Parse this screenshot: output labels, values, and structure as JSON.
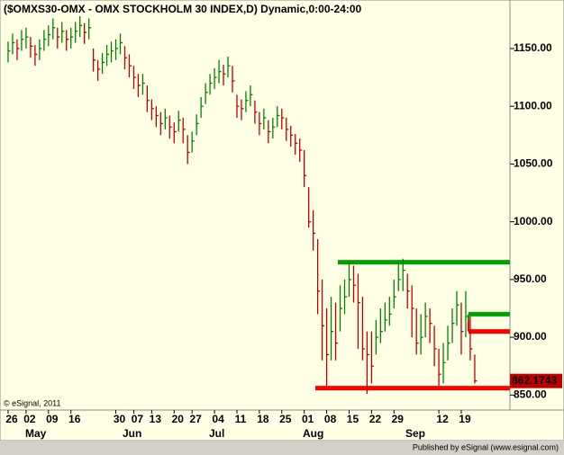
{
  "chart_data": {
    "type": "hlc",
    "title": "($OMXS30-OMX - OMX STOCKHOLM 30 INDEX,D) Dynamic,0:00-24:00",
    "copyright": "© eSignal, 2011",
    "footer": "Published by eSignal (www.esignal.com)",
    "up_color": "#008000",
    "down_color": "#c00000",
    "categories": [
      "26",
      null,
      null,
      null,
      "02",
      null,
      null,
      null,
      null,
      "09",
      null,
      null,
      null,
      null,
      "16",
      null,
      null,
      null,
      null,
      null,
      null,
      null,
      null,
      null,
      "30",
      null,
      null,
      null,
      "07",
      null,
      null,
      null,
      "13",
      null,
      null,
      null,
      null,
      "20",
      null,
      null,
      null,
      "27",
      null,
      null,
      null,
      null,
      "04",
      null,
      null,
      null,
      null,
      "11",
      null,
      null,
      null,
      null,
      "18",
      null,
      null,
      null,
      null,
      "25",
      null,
      null,
      null,
      null,
      "01",
      null,
      null,
      null,
      null,
      "08",
      null,
      null,
      null,
      null,
      "15",
      null,
      null,
      null,
      null,
      "22",
      null,
      null,
      null,
      null,
      "29",
      null,
      null,
      null,
      null,
      null,
      null,
      null,
      null,
      null,
      "12",
      null,
      null,
      null,
      null,
      "19",
      null,
      null,
      null
    ],
    "months": [
      "May",
      "Jun",
      "Jul",
      "Aug",
      "Sep"
    ],
    "high": [
      1156,
      1163,
      1158,
      1166,
      1168,
      1160,
      1153,
      1158,
      1166,
      1170,
      1176,
      1168,
      1173,
      1166,
      1168,
      1173,
      1178,
      1172,
      1176,
      1150,
      1140,
      1146,
      1153,
      1156,
      1158,
      1163,
      1152,
      1145,
      1135,
      1128,
      1128,
      1118,
      1106,
      1100,
      1095,
      1098,
      1092,
      1086,
      1096,
      1090,
      1075,
      1078,
      1093,
      1108,
      1120,
      1128,
      1133,
      1140,
      1136,
      1143,
      1135,
      1110,
      1106,
      1113,
      1118,
      1105,
      1095,
      1098,
      1088,
      1090,
      1100,
      1098,
      1090,
      1083,
      1076,
      1072,
      1062,
      1030,
      1010,
      985,
      950,
      925,
      935,
      930,
      945,
      950,
      965,
      962,
      955,
      935,
      905,
      905,
      915,
      925,
      930,
      935,
      950,
      965,
      968,
      955,
      945,
      925,
      920,
      930,
      925,
      910,
      890,
      895,
      910,
      925,
      940,
      930,
      940,
      918,
      885
    ],
    "low": [
      1138,
      1145,
      1140,
      1148,
      1150,
      1142,
      1135,
      1140,
      1148,
      1152,
      1158,
      1150,
      1155,
      1148,
      1150,
      1155,
      1160,
      1154,
      1158,
      1130,
      1122,
      1128,
      1135,
      1138,
      1140,
      1145,
      1132,
      1125,
      1115,
      1108,
      1110,
      1095,
      1088,
      1082,
      1075,
      1080,
      1072,
      1068,
      1078,
      1068,
      1050,
      1060,
      1075,
      1090,
      1102,
      1110,
      1115,
      1120,
      1118,
      1125,
      1112,
      1090,
      1088,
      1095,
      1100,
      1085,
      1075,
      1080,
      1068,
      1072,
      1082,
      1080,
      1070,
      1065,
      1058,
      1052,
      1030,
      995,
      975,
      920,
      880,
      858,
      880,
      880,
      905,
      920,
      935,
      930,
      890,
      880,
      851,
      860,
      885,
      895,
      905,
      910,
      925,
      940,
      940,
      925,
      900,
      885,
      885,
      900,
      895,
      875,
      858,
      860,
      880,
      895,
      910,
      885,
      900,
      880,
      860
    ],
    "close": [
      1148,
      1155,
      1150,
      1158,
      1160,
      1152,
      1145,
      1150,
      1158,
      1162,
      1168,
      1160,
      1165,
      1158,
      1160,
      1165,
      1170,
      1164,
      1168,
      1140,
      1132,
      1138,
      1145,
      1148,
      1150,
      1155,
      1142,
      1135,
      1125,
      1118,
      1120,
      1105,
      1098,
      1092,
      1085,
      1090,
      1082,
      1078,
      1088,
      1080,
      1060,
      1070,
      1085,
      1100,
      1112,
      1120,
      1125,
      1130,
      1128,
      1135,
      1122,
      1100,
      1098,
      1105,
      1110,
      1095,
      1085,
      1090,
      1078,
      1082,
      1092,
      1090,
      1080,
      1075,
      1068,
      1062,
      1040,
      1000,
      990,
      940,
      910,
      885,
      905,
      895,
      925,
      935,
      950,
      945,
      930,
      890,
      885,
      875,
      900,
      905,
      915,
      920,
      935,
      950,
      958,
      940,
      925,
      895,
      900,
      918,
      912,
      890,
      868,
      878,
      895,
      912,
      928,
      905,
      918,
      890,
      862.1743
    ],
    "levels": [
      {
        "value": 965,
        "color": "#00a000"
      },
      {
        "value": 856,
        "color": "#ff0000"
      },
      {
        "value": 920,
        "color": "#00a000"
      },
      {
        "value": 905,
        "color": "#ff0000"
      }
    ],
    "ylim": [
      837,
      1192
    ],
    "yticks": [
      {
        "value": 850,
        "label": "850.00"
      },
      {
        "value": 900,
        "label": "900.00"
      },
      {
        "value": 950,
        "label": "950.00"
      },
      {
        "value": 1000,
        "label": "1000.00"
      },
      {
        "value": 1050,
        "label": "1050.00"
      },
      {
        "value": 1100,
        "label": "1100.00"
      },
      {
        "value": 1150,
        "label": "1150.00"
      }
    ]
  }
}
